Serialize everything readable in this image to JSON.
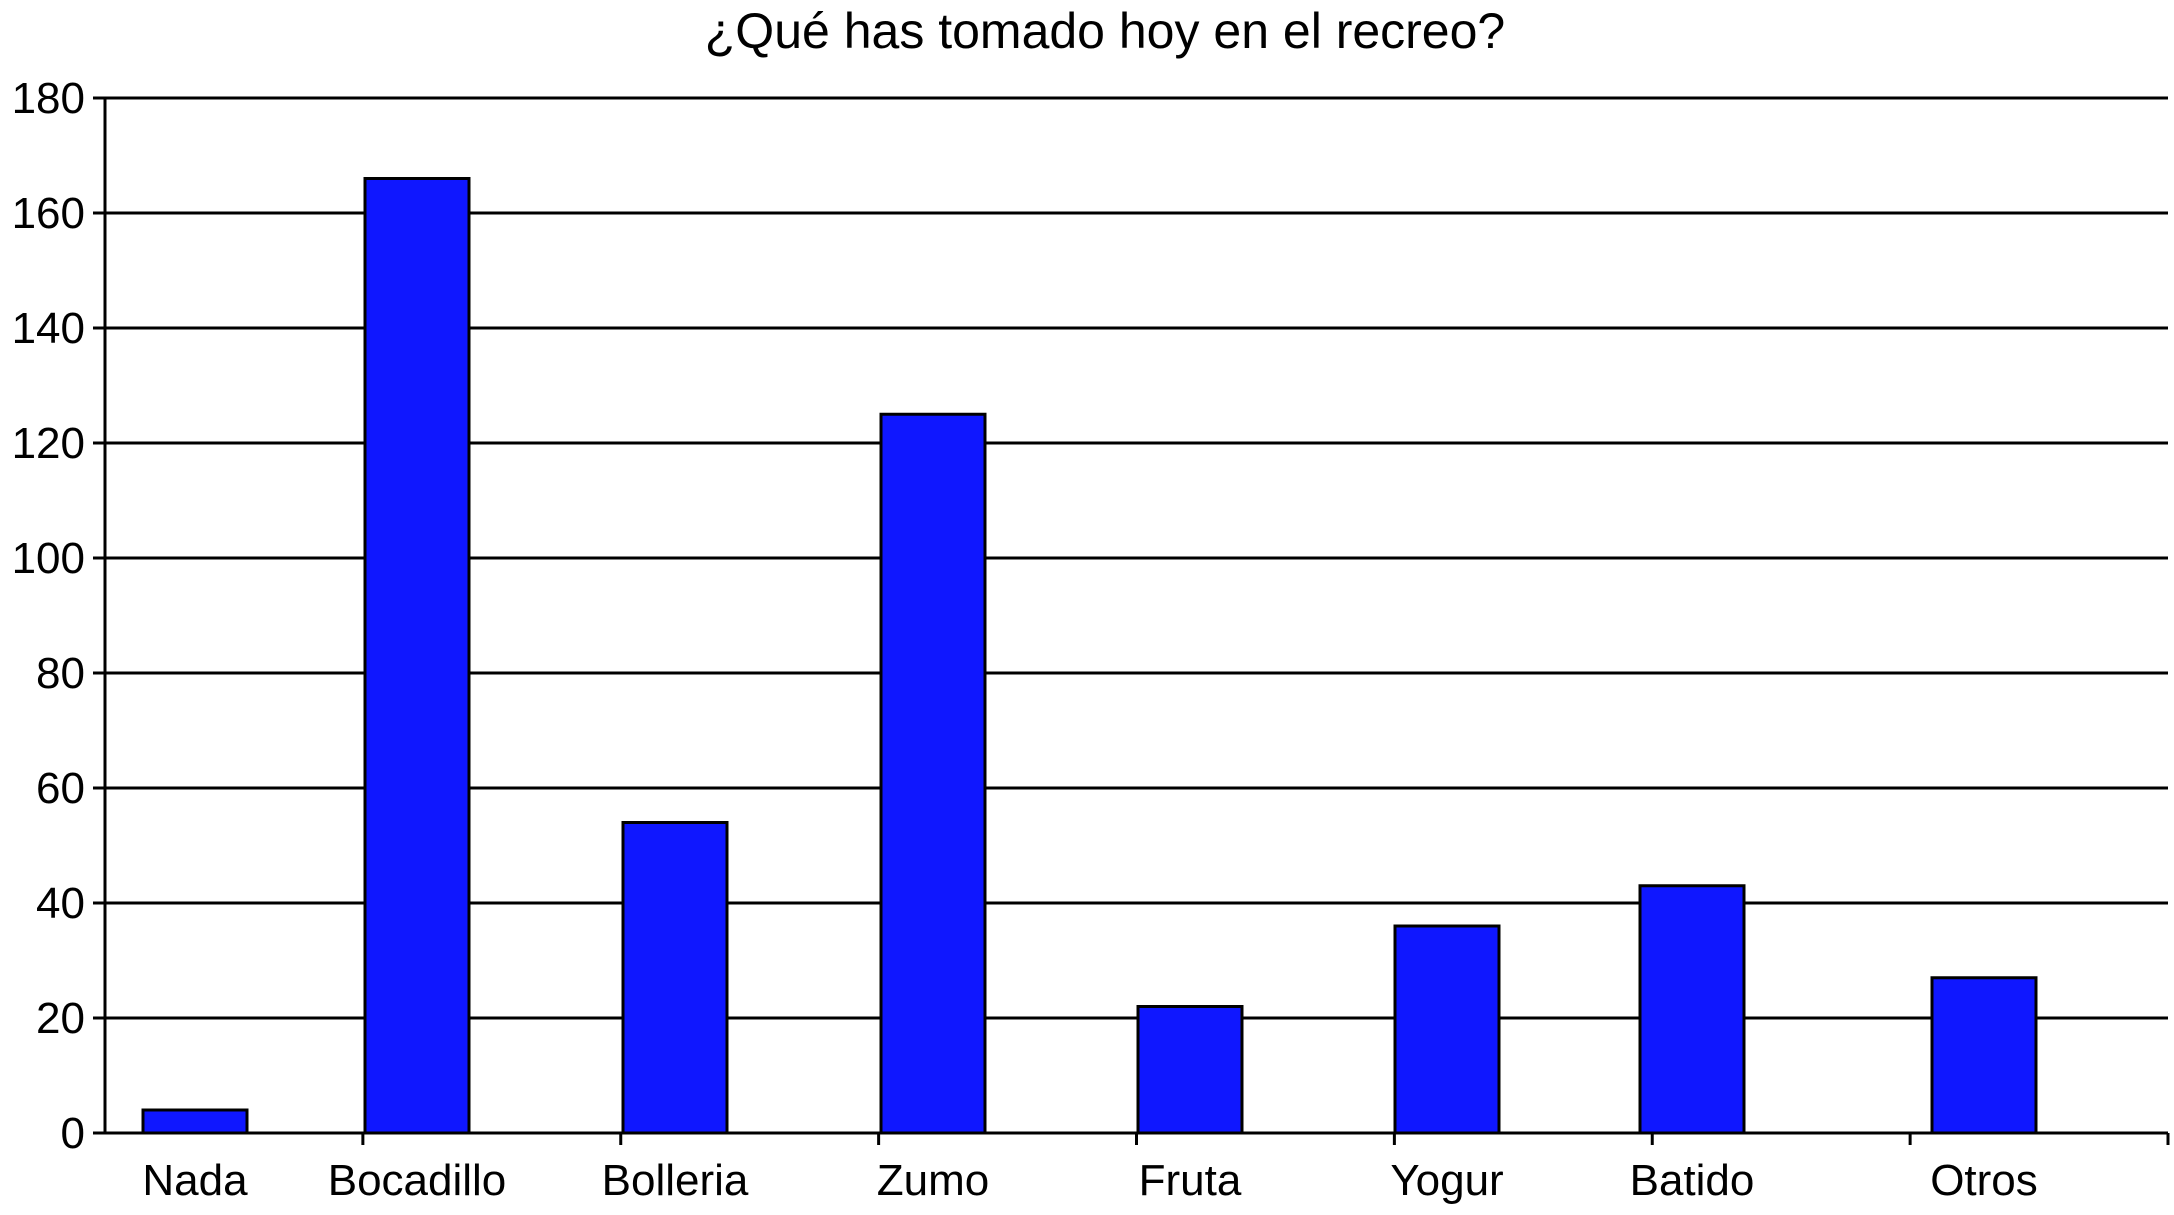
{
  "chart_data": {
    "type": "bar",
    "title": "¿Qué has tomado hoy en el recreo?",
    "xlabel": "",
    "ylabel": "",
    "categories": [
      "Nada",
      "Bocadillo",
      "Bolleria",
      "Zumo",
      "Fruta",
      "Yogur",
      "Batido",
      "Otros"
    ],
    "values": [
      4,
      166,
      54,
      125,
      22,
      36,
      43,
      27
    ],
    "ylim": [
      0,
      180
    ],
    "yticks": [
      0,
      20,
      40,
      60,
      80,
      100,
      120,
      140,
      160,
      180
    ],
    "grid": true,
    "legend": "none",
    "colors": {
      "bar_fill": "#0f17ff",
      "bar_stroke": "#000000",
      "grid": "#000000",
      "axis": "#000000"
    }
  }
}
